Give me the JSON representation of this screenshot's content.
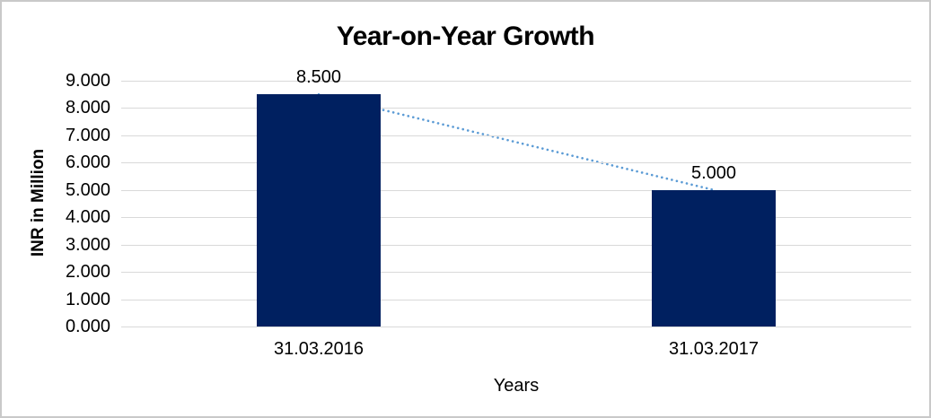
{
  "chart_data": {
    "type": "bar",
    "title": "Year-on-Year Growth",
    "xlabel": "Years",
    "ylabel": "INR in Million",
    "categories": [
      "31.03.2016",
      "31.03.2017"
    ],
    "values": [
      8.5,
      5.0
    ],
    "value_labels": [
      "8.500",
      "5.000"
    ],
    "ylim": [
      0,
      9
    ],
    "ytick_step": 1,
    "ytick_labels": [
      "0.000",
      "1.000",
      "2.000",
      "3.000",
      "4.000",
      "5.000",
      "6.000",
      "7.000",
      "8.000",
      "9.000"
    ],
    "grid": true,
    "legend": false,
    "trendline": {
      "style": "dotted",
      "connects": "bar tops (8.500 to 5.000)"
    },
    "colors": {
      "bar": "#002060",
      "trendline": "#5B9BD5",
      "gridline": "#d9d9d9",
      "axis_line": "#d9d9d9",
      "text": "#000000",
      "frame_border": "#c9c9c9",
      "background": "#ffffff"
    }
  }
}
